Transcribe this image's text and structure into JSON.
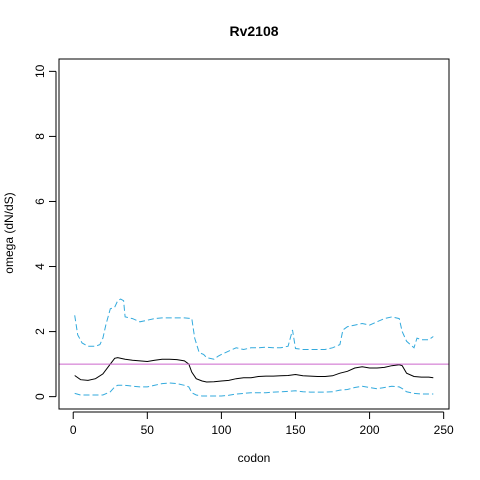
{
  "chart_data": {
    "type": "line",
    "title": "Rv2108",
    "xlabel": "codon",
    "ylabel": "omega (dN/dS)",
    "xlim": [
      0,
      250
    ],
    "ylim": [
      0,
      10
    ],
    "x_ticks": [
      0,
      50,
      100,
      150,
      200,
      250
    ],
    "y_ticks": [
      0,
      2,
      4,
      6,
      8,
      10
    ],
    "x_tick_labels": [
      "0",
      "50",
      "100",
      "150",
      "200",
      "250"
    ],
    "y_tick_labels": [
      "0",
      "2",
      "4",
      "6",
      "8",
      "10"
    ],
    "reference_line": {
      "y": 1,
      "color": "#cc66cc"
    },
    "grid": false,
    "series": [
      {
        "style": "solid",
        "color": "#000000",
        "x": [
          1,
          5,
          10,
          15,
          20,
          25,
          28,
          30,
          35,
          40,
          45,
          50,
          55,
          60,
          65,
          70,
          75,
          78,
          80,
          83,
          87,
          90,
          95,
          100,
          105,
          110,
          115,
          120,
          125,
          130,
          135,
          140,
          145,
          150,
          155,
          160,
          165,
          170,
          175,
          180,
          185,
          190,
          195,
          200,
          205,
          210,
          215,
          220,
          222,
          225,
          230,
          235,
          240,
          243
        ],
        "y": [
          0.65,
          0.52,
          0.5,
          0.55,
          0.7,
          1.0,
          1.18,
          1.2,
          1.15,
          1.12,
          1.1,
          1.08,
          1.12,
          1.15,
          1.15,
          1.14,
          1.1,
          1.0,
          0.75,
          0.55,
          0.48,
          0.45,
          0.46,
          0.48,
          0.5,
          0.55,
          0.58,
          0.58,
          0.62,
          0.63,
          0.63,
          0.64,
          0.65,
          0.68,
          0.64,
          0.63,
          0.62,
          0.62,
          0.64,
          0.72,
          0.78,
          0.88,
          0.92,
          0.88,
          0.88,
          0.9,
          0.95,
          0.98,
          0.95,
          0.72,
          0.62,
          0.6,
          0.6,
          0.58
        ]
      },
      {
        "style": "dashed",
        "color": "#33aadd",
        "x": [
          1,
          3,
          6,
          10,
          15,
          18,
          20,
          22,
          25,
          28,
          30,
          32,
          34,
          35,
          40,
          45,
          50,
          55,
          60,
          65,
          70,
          75,
          80,
          82,
          85,
          88,
          90,
          95,
          98,
          100,
          105,
          110,
          115,
          120,
          125,
          130,
          135,
          140,
          145,
          148,
          150,
          155,
          160,
          165,
          170,
          175,
          180,
          182,
          185,
          190,
          195,
          200,
          205,
          210,
          215,
          220,
          222,
          225,
          230,
          232,
          235,
          240,
          243
        ],
        "y": [
          2.5,
          1.9,
          1.65,
          1.55,
          1.55,
          1.6,
          1.8,
          2.2,
          2.7,
          2.75,
          2.95,
          3.0,
          2.95,
          2.45,
          2.4,
          2.3,
          2.35,
          2.4,
          2.42,
          2.42,
          2.42,
          2.42,
          2.4,
          1.8,
          1.35,
          1.3,
          1.2,
          1.15,
          1.25,
          1.3,
          1.4,
          1.5,
          1.45,
          1.5,
          1.5,
          1.52,
          1.5,
          1.5,
          1.55,
          2.05,
          1.48,
          1.45,
          1.45,
          1.45,
          1.45,
          1.5,
          1.6,
          2.05,
          2.15,
          2.2,
          2.25,
          2.2,
          2.3,
          2.4,
          2.45,
          2.4,
          2.0,
          1.7,
          1.5,
          1.8,
          1.75,
          1.75,
          1.85
        ]
      },
      {
        "style": "dashed",
        "color": "#33aadd",
        "x": [
          1,
          5,
          10,
          15,
          20,
          25,
          28,
          30,
          35,
          40,
          45,
          50,
          55,
          60,
          65,
          70,
          75,
          78,
          80,
          83,
          87,
          90,
          95,
          100,
          105,
          110,
          115,
          120,
          125,
          130,
          135,
          140,
          145,
          150,
          155,
          160,
          165,
          170,
          175,
          180,
          185,
          190,
          195,
          200,
          205,
          210,
          215,
          220,
          222,
          225,
          230,
          235,
          240,
          243
        ],
        "y": [
          0.1,
          0.05,
          0.05,
          0.05,
          0.05,
          0.15,
          0.3,
          0.35,
          0.35,
          0.32,
          0.3,
          0.3,
          0.35,
          0.4,
          0.42,
          0.4,
          0.35,
          0.3,
          0.12,
          0.05,
          0.02,
          0.02,
          0.02,
          0.02,
          0.04,
          0.08,
          0.1,
          0.12,
          0.12,
          0.12,
          0.14,
          0.15,
          0.16,
          0.18,
          0.15,
          0.14,
          0.14,
          0.14,
          0.15,
          0.2,
          0.22,
          0.28,
          0.32,
          0.28,
          0.24,
          0.28,
          0.32,
          0.3,
          0.25,
          0.15,
          0.1,
          0.08,
          0.08,
          0.08
        ]
      }
    ]
  }
}
